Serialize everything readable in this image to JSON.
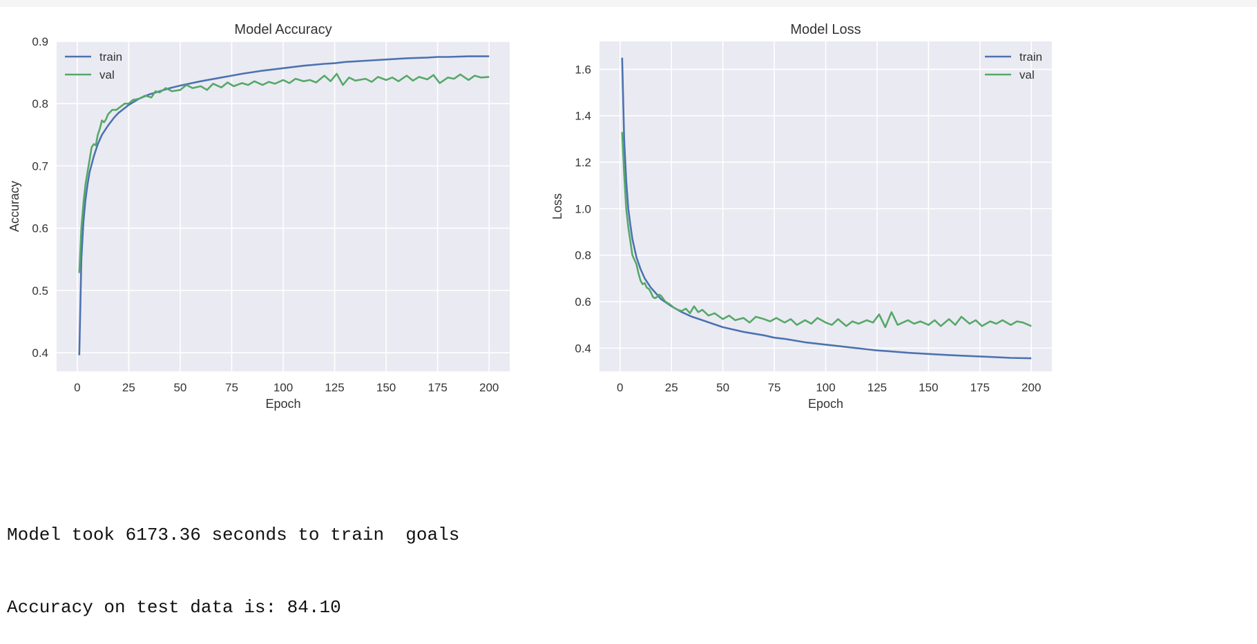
{
  "colors": {
    "plot_bg": "#eaeaf2",
    "grid": "#ffffff",
    "train": "#4c72b0",
    "val": "#55a868",
    "text": "#333333"
  },
  "output": {
    "line1": "Model took 6173.36 seconds to train  goals",
    "line2": "Accuracy on test data is: 84.10"
  },
  "chart_data": [
    {
      "type": "line",
      "title": "Model Accuracy",
      "xlabel": "Epoch",
      "ylabel": "Accuracy",
      "xlim": [
        -10,
        210
      ],
      "ylim": [
        0.37,
        0.9
      ],
      "xticks": [
        0,
        25,
        50,
        75,
        100,
        125,
        150,
        175,
        200
      ],
      "yticks": [
        0.4,
        0.5,
        0.6,
        0.7,
        0.8,
        0.9
      ],
      "ytick_labels": [
        "0.4",
        "0.5",
        "0.6",
        "0.7",
        "0.8",
        "0.9"
      ],
      "grid": true,
      "legend": "top-left",
      "series": [
        {
          "name": "train",
          "x": [
            1,
            2,
            3,
            4,
            5,
            6,
            8,
            10,
            12,
            15,
            18,
            20,
            25,
            30,
            35,
            40,
            45,
            50,
            60,
            70,
            75,
            80,
            90,
            100,
            110,
            120,
            125,
            130,
            140,
            150,
            160,
            170,
            175,
            180,
            190,
            200
          ],
          "values": [
            0.396,
            0.55,
            0.61,
            0.645,
            0.67,
            0.69,
            0.715,
            0.735,
            0.75,
            0.765,
            0.778,
            0.785,
            0.798,
            0.808,
            0.815,
            0.82,
            0.825,
            0.829,
            0.836,
            0.842,
            0.845,
            0.848,
            0.853,
            0.857,
            0.861,
            0.864,
            0.865,
            0.867,
            0.869,
            0.871,
            0.873,
            0.874,
            0.875,
            0.875,
            0.876,
            0.876
          ]
        },
        {
          "name": "val",
          "x": [
            1,
            2,
            3,
            4,
            5,
            6,
            7,
            8,
            9,
            10,
            11,
            12,
            13,
            14,
            15,
            17,
            19,
            21,
            23,
            25,
            27,
            30,
            33,
            36,
            38,
            40,
            43,
            46,
            50,
            53,
            56,
            60,
            63,
            66,
            70,
            73,
            76,
            80,
            83,
            86,
            90,
            93,
            96,
            100,
            103,
            106,
            110,
            113,
            116,
            120,
            123,
            126,
            129,
            132,
            135,
            140,
            143,
            146,
            150,
            153,
            156,
            160,
            163,
            166,
            170,
            173,
            176,
            180,
            183,
            186,
            190,
            193,
            196,
            200
          ],
          "values": [
            0.528,
            0.6,
            0.64,
            0.67,
            0.69,
            0.71,
            0.73,
            0.735,
            0.733,
            0.75,
            0.76,
            0.773,
            0.77,
            0.775,
            0.783,
            0.79,
            0.79,
            0.795,
            0.8,
            0.8,
            0.806,
            0.808,
            0.813,
            0.81,
            0.82,
            0.818,
            0.825,
            0.82,
            0.822,
            0.83,
            0.825,
            0.828,
            0.822,
            0.832,
            0.826,
            0.834,
            0.828,
            0.833,
            0.83,
            0.836,
            0.83,
            0.835,
            0.832,
            0.838,
            0.833,
            0.84,
            0.836,
            0.838,
            0.834,
            0.845,
            0.836,
            0.848,
            0.83,
            0.842,
            0.837,
            0.84,
            0.835,
            0.843,
            0.838,
            0.842,
            0.836,
            0.845,
            0.837,
            0.843,
            0.839,
            0.846,
            0.833,
            0.842,
            0.84,
            0.847,
            0.838,
            0.845,
            0.842,
            0.843
          ]
        }
      ]
    },
    {
      "type": "line",
      "title": "Model Loss",
      "xlabel": "Epoch",
      "ylabel": "Loss",
      "xlim": [
        -10,
        210
      ],
      "ylim": [
        0.3,
        1.72
      ],
      "xticks": [
        0,
        25,
        50,
        75,
        100,
        125,
        150,
        175,
        200
      ],
      "yticks": [
        0.4,
        0.6,
        0.8,
        1.0,
        1.2,
        1.4,
        1.6
      ],
      "ytick_labels": [
        "0.4",
        "0.6",
        "0.8",
        "1.0",
        "1.2",
        "1.4",
        "1.6"
      ],
      "grid": true,
      "legend": "top-right",
      "series": [
        {
          "name": "train",
          "x": [
            1,
            2,
            3,
            4,
            5,
            6,
            8,
            10,
            12,
            15,
            18,
            20,
            25,
            30,
            35,
            40,
            45,
            50,
            55,
            60,
            70,
            75,
            80,
            90,
            100,
            110,
            120,
            125,
            130,
            140,
            150,
            160,
            170,
            180,
            190,
            200
          ],
          "values": [
            1.65,
            1.3,
            1.12,
            1.0,
            0.93,
            0.87,
            0.79,
            0.74,
            0.7,
            0.66,
            0.63,
            0.61,
            0.58,
            0.555,
            0.535,
            0.52,
            0.505,
            0.49,
            0.48,
            0.47,
            0.455,
            0.445,
            0.44,
            0.425,
            0.415,
            0.405,
            0.395,
            0.39,
            0.387,
            0.38,
            0.375,
            0.37,
            0.366,
            0.362,
            0.358,
            0.356
          ]
        },
        {
          "name": "val",
          "x": [
            1,
            2,
            3,
            4,
            5,
            6,
            7,
            8,
            9,
            10,
            11,
            12,
            13,
            14,
            15,
            16,
            17,
            18,
            19,
            20,
            22,
            24,
            26,
            28,
            30,
            32,
            34,
            36,
            38,
            40,
            43,
            46,
            50,
            53,
            56,
            60,
            63,
            66,
            70,
            73,
            76,
            80,
            83,
            86,
            90,
            93,
            96,
            100,
            103,
            106,
            110,
            113,
            116,
            120,
            123,
            126,
            129,
            132,
            135,
            140,
            143,
            146,
            150,
            153,
            156,
            160,
            163,
            166,
            170,
            173,
            176,
            180,
            183,
            186,
            190,
            193,
            196,
            200
          ],
          "values": [
            1.33,
            1.15,
            1.0,
            0.92,
            0.86,
            0.8,
            0.78,
            0.76,
            0.72,
            0.69,
            0.675,
            0.68,
            0.66,
            0.655,
            0.64,
            0.62,
            0.615,
            0.62,
            0.63,
            0.625,
            0.6,
            0.59,
            0.575,
            0.565,
            0.56,
            0.57,
            0.55,
            0.58,
            0.555,
            0.565,
            0.54,
            0.55,
            0.525,
            0.54,
            0.52,
            0.53,
            0.51,
            0.535,
            0.525,
            0.515,
            0.53,
            0.51,
            0.525,
            0.5,
            0.52,
            0.505,
            0.53,
            0.51,
            0.5,
            0.525,
            0.495,
            0.515,
            0.505,
            0.52,
            0.51,
            0.545,
            0.49,
            0.555,
            0.5,
            0.52,
            0.505,
            0.515,
            0.5,
            0.52,
            0.495,
            0.525,
            0.5,
            0.535,
            0.505,
            0.52,
            0.495,
            0.515,
            0.505,
            0.52,
            0.5,
            0.515,
            0.51,
            0.495
          ]
        }
      ]
    }
  ]
}
